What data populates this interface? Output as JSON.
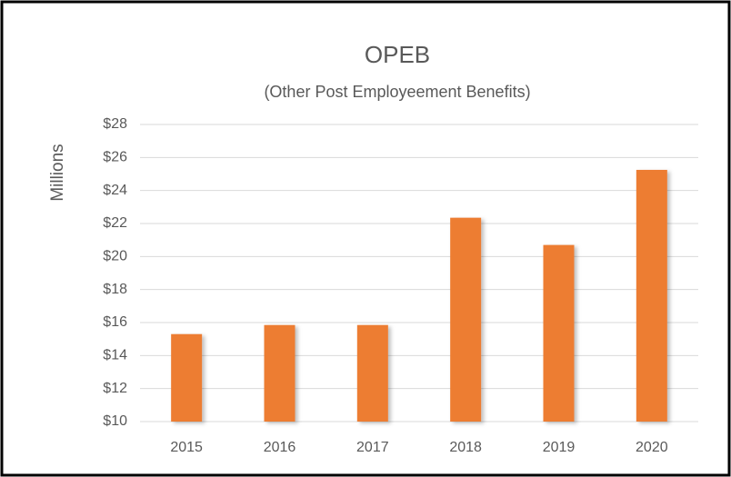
{
  "chart_data": {
    "type": "bar",
    "title": "OPEB",
    "subtitle": "(Other Post Employeement Benefits)",
    "y_label": "Millions",
    "categories": [
      "2015",
      "2016",
      "2017",
      "2018",
      "2019",
      "2020"
    ],
    "values": [
      15.3,
      15.85,
      15.85,
      22.35,
      20.7,
      25.25
    ],
    "color": "#ed7d31",
    "ylim": [
      10,
      28
    ],
    "yticks": [
      {
        "value": 10,
        "label": "$10"
      },
      {
        "value": 12,
        "label": "$12"
      },
      {
        "value": 14,
        "label": "$14"
      },
      {
        "value": 16,
        "label": "$16"
      },
      {
        "value": 18,
        "label": "$18"
      },
      {
        "value": 20,
        "label": "$20"
      },
      {
        "value": 22,
        "label": "$22"
      },
      {
        "value": 24,
        "label": "$24"
      },
      {
        "value": 26,
        "label": "$26"
      },
      {
        "value": 28,
        "label": "$28"
      }
    ],
    "grid": true
  }
}
